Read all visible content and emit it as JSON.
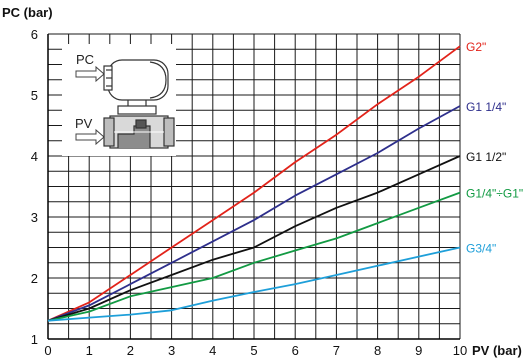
{
  "chart_data": {
    "type": "line",
    "title": "",
    "xlabel": "PV (bar)",
    "ylabel": "PC (bar)",
    "xlim": [
      0,
      10
    ],
    "ylim": [
      1,
      6
    ],
    "xticks": [
      0,
      1,
      2,
      3,
      4,
      5,
      6,
      7,
      8,
      9,
      10
    ],
    "yticks": [
      1,
      2,
      3,
      4,
      5,
      6
    ],
    "grid": true,
    "series": [
      {
        "name": "G2\"",
        "color": "#e2231a",
        "x": [
          0,
          1,
          2,
          3,
          4,
          5,
          6,
          7,
          8,
          9,
          10
        ],
        "y": [
          1.3,
          1.6,
          2.05,
          2.5,
          2.95,
          3.4,
          3.9,
          4.35,
          4.85,
          5.3,
          5.8
        ]
      },
      {
        "name": "G1 1/4\"",
        "color": "#2e2f8c",
        "x": [
          0,
          1,
          2,
          3,
          4,
          5,
          6,
          7,
          8,
          9,
          10
        ],
        "y": [
          1.3,
          1.55,
          1.9,
          2.25,
          2.6,
          2.95,
          3.35,
          3.7,
          4.05,
          4.45,
          4.82
        ]
      },
      {
        "name": "G1 1/2\"",
        "color": "#111111",
        "x": [
          0,
          1,
          2,
          3,
          4,
          5,
          6,
          7,
          8,
          9,
          10
        ],
        "y": [
          1.3,
          1.5,
          1.8,
          2.05,
          2.3,
          2.5,
          2.85,
          3.15,
          3.4,
          3.7,
          4.0
        ]
      },
      {
        "name": "G1/4\"÷G1\"",
        "color": "#129a43",
        "x": [
          0,
          1,
          2,
          3,
          4,
          5,
          6,
          7,
          8,
          9,
          10
        ],
        "y": [
          1.3,
          1.45,
          1.7,
          1.85,
          2.0,
          2.25,
          2.45,
          2.65,
          2.9,
          3.15,
          3.4
        ]
      },
      {
        "name": "G3/4\"",
        "color": "#1e9fd9",
        "x": [
          0,
          1,
          2,
          3,
          4,
          5,
          6,
          7,
          8,
          9,
          10
        ],
        "y": [
          1.3,
          1.35,
          1.4,
          1.47,
          1.63,
          1.77,
          1.9,
          2.05,
          2.2,
          2.35,
          2.5
        ]
      }
    ]
  },
  "inset": {
    "pc_label": "PC",
    "pv_label": "PV"
  }
}
